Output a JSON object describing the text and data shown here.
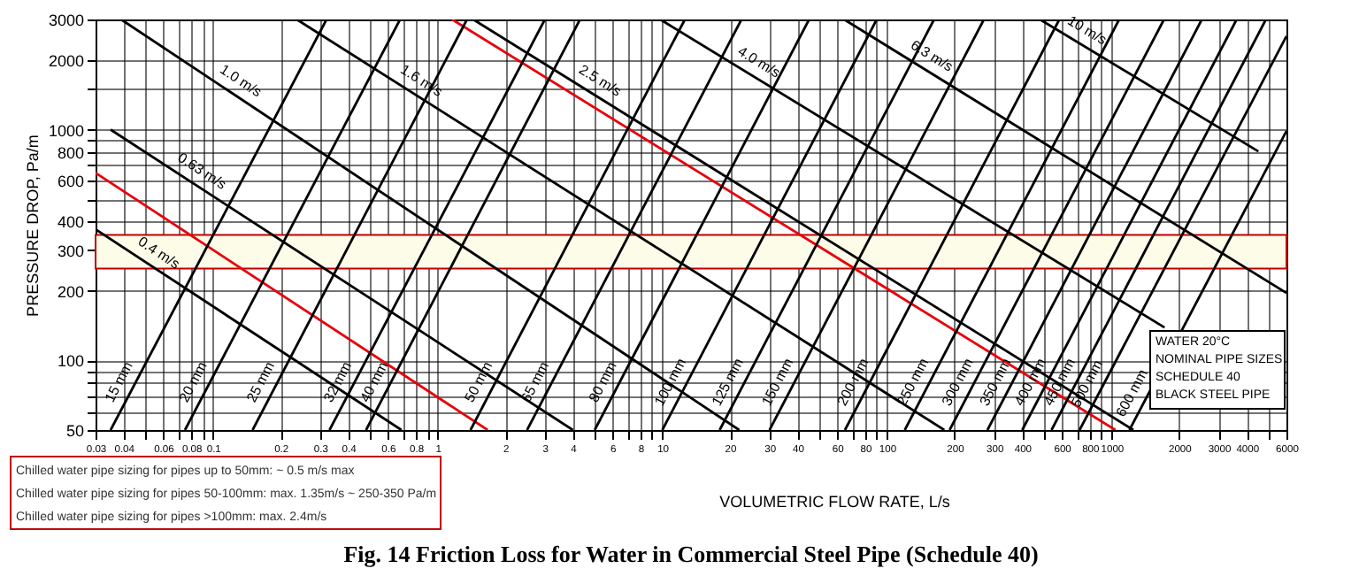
{
  "chart_data": {
    "type": "line",
    "title": "Fig. 14    Friction Loss for Water in Commercial Steel Pipe (Schedule 40)",
    "xlabel": "VOLUMETRIC FLOW RATE, L/s",
    "ylabel": "PRESSURE DROP, Pa/m",
    "log": "xy",
    "grid": true,
    "marker": "none",
    "line_style": "solid",
    "xlim": [
      0.03,
      6000
    ],
    "ylim": [
      50,
      3000
    ],
    "xticks": [
      0.03,
      0.04,
      {
        "value": 0.05,
        "label": null
      },
      0.06,
      {
        "value": 0.07,
        "label": null
      },
      0.08,
      {
        "value": 0.09,
        "label": null
      },
      0.1,
      0.2,
      0.3,
      0.4,
      {
        "value": 0.5,
        "label": null
      },
      0.6,
      {
        "value": 0.7,
        "label": null
      },
      0.8,
      {
        "value": 0.9,
        "label": null
      },
      1,
      2,
      3,
      4,
      {
        "value": 5,
        "label": null
      },
      6,
      {
        "value": 7,
        "label": null
      },
      8,
      {
        "value": 9,
        "label": null
      },
      10,
      20,
      30,
      40,
      {
        "value": 50,
        "label": null
      },
      60,
      {
        "value": 70,
        "label": null
      },
      80,
      {
        "value": 90,
        "label": null
      },
      100,
      200,
      300,
      400,
      {
        "value": 500,
        "label": null
      },
      600,
      {
        "value": 700,
        "label": null
      },
      800,
      {
        "value": 900,
        "label": null
      },
      1000,
      2000,
      3000,
      4000,
      {
        "value": 5000,
        "label": null
      },
      6000
    ],
    "yticks": [
      50,
      {
        "value": 60,
        "label": null
      },
      {
        "value": 70,
        "label": null
      },
      {
        "value": 80,
        "label": null
      },
      {
        "value": 90,
        "label": null
      },
      100,
      200,
      300,
      400,
      {
        "value": 500,
        "label": null
      },
      600,
      {
        "value": 700,
        "label": null
      },
      800,
      {
        "value": 900,
        "label": null
      },
      1000,
      {
        "value": 1500,
        "label": null
      },
      2000,
      3000
    ],
    "bands": [
      {
        "axis": "y",
        "from": 250,
        "to": 350,
        "color": "#fdfce8"
      }
    ],
    "annotations": [
      "Chilled water pipe sizing for pipes up to 50mm: ~ 0.5 m/s max",
      "Chilled water pipe sizing for pipes 50-100mm: max. 1.35m/s ~ 250-350 Pa/m",
      "Chilled water pipe sizing for pipes >100mm: max. 2.4m/s",
      "WATER 20°C",
      "NOMINAL PIPE SIZES",
      "SCHEDULE 40",
      "BLACK STEEL PIPE"
    ],
    "series": [
      {
        "name": "0.4 m/s",
        "color": "#000000",
        "x": [
          0.03,
          0.69
        ],
        "values": [
          370,
          50
        ]
      },
      {
        "color": "#e8000b",
        "x": [
          0.03,
          1.67
        ],
        "values": [
          650,
          50
        ]
      },
      {
        "name": "0.63 m/s",
        "color": "#000000",
        "x": [
          0.035,
          4.0
        ],
        "values": [
          1000,
          50
        ]
      },
      {
        "name": "1.0 m/s",
        "color": "#000000",
        "x": [
          0.039,
          22
        ],
        "values": [
          3000,
          50
        ]
      },
      {
        "name": "1.6 m/s",
        "color": "#000000",
        "x": [
          0.236,
          180
        ],
        "values": [
          3000,
          50
        ]
      },
      {
        "color": "#e8000b",
        "x": [
          1.16,
          1040
        ],
        "values": [
          3000,
          50
        ]
      },
      {
        "name": "2.5 m/s",
        "color": "#000000",
        "x": [
          1.44,
          1250
        ],
        "values": [
          3000,
          50
        ]
      },
      {
        "name": "4.0 m/s",
        "color": "#000000",
        "x": [
          9.8,
          1720
        ],
        "values": [
          3000,
          139
        ]
      },
      {
        "name": "6.3 m/s",
        "color": "#000000",
        "x": [
          64.5,
          6000
        ],
        "values": [
          3000,
          196
        ]
      },
      {
        "name": "10 m/s",
        "color": "#000000",
        "x": [
          480,
          4500
        ],
        "values": [
          3000,
          805
        ]
      },
      {
        "name": "15 mm",
        "color": "#000000",
        "x": [
          0.035,
          0.32
        ],
        "values": [
          50,
          3000
        ]
      },
      {
        "name": "20 mm",
        "color": "#000000",
        "x": [
          0.075,
          0.68
        ],
        "values": [
          50,
          3000
        ]
      },
      {
        "name": "25 mm",
        "color": "#000000",
        "x": [
          0.15,
          1.35
        ],
        "values": [
          50,
          3000
        ]
      },
      {
        "name": "32 mm",
        "color": "#000000",
        "x": [
          0.33,
          3.0
        ],
        "values": [
          50,
          3000
        ]
      },
      {
        "name": "40 mm",
        "color": "#000000",
        "x": [
          0.48,
          4.3
        ],
        "values": [
          50,
          3000
        ]
      },
      {
        "name": "50 mm",
        "color": "#000000",
        "x": [
          1.4,
          12.6
        ],
        "values": [
          50,
          3000
        ]
      },
      {
        "name": "65 mm",
        "color": "#000000",
        "x": [
          2.5,
          22.5
        ],
        "values": [
          50,
          3000
        ]
      },
      {
        "name": "80 mm",
        "color": "#000000",
        "x": [
          5,
          45
        ],
        "values": [
          50,
          3000
        ]
      },
      {
        "name": "100 mm",
        "color": "#000000",
        "x": [
          10,
          90
        ],
        "values": [
          50,
          3000
        ]
      },
      {
        "name": "125 mm",
        "color": "#000000",
        "x": [
          18,
          162
        ],
        "values": [
          50,
          3000
        ]
      },
      {
        "name": "150 mm",
        "color": "#000000",
        "x": [
          30,
          270
        ],
        "values": [
          50,
          3000
        ]
      },
      {
        "name": "200 mm",
        "color": "#000000",
        "x": [
          65,
          585
        ],
        "values": [
          50,
          3000
        ]
      },
      {
        "name": "250 mm",
        "color": "#000000",
        "x": [
          120,
          1080
        ],
        "values": [
          50,
          3000
        ]
      },
      {
        "name": "300 mm",
        "color": "#000000",
        "x": [
          190,
          1710
        ],
        "values": [
          50,
          3000
        ]
      },
      {
        "name": "350 mm",
        "color": "#000000",
        "x": [
          280,
          2520
        ],
        "values": [
          50,
          3000
        ]
      },
      {
        "name": "400 mm",
        "color": "#000000",
        "x": [
          400,
          3600
        ],
        "values": [
          50,
          3000
        ]
      },
      {
        "name": "450 mm",
        "color": "#000000",
        "x": [
          540,
          4860
        ],
        "values": [
          50,
          3000
        ]
      },
      {
        "name": "500 mm",
        "color": "#000000",
        "x": [
          720,
          6000
        ],
        "values": [
          50,
          2540
        ]
      },
      {
        "name": "600 mm",
        "color": "#000000",
        "x": [
          1200,
          6000
        ],
        "values": [
          50,
          986
        ]
      }
    ]
  }
}
